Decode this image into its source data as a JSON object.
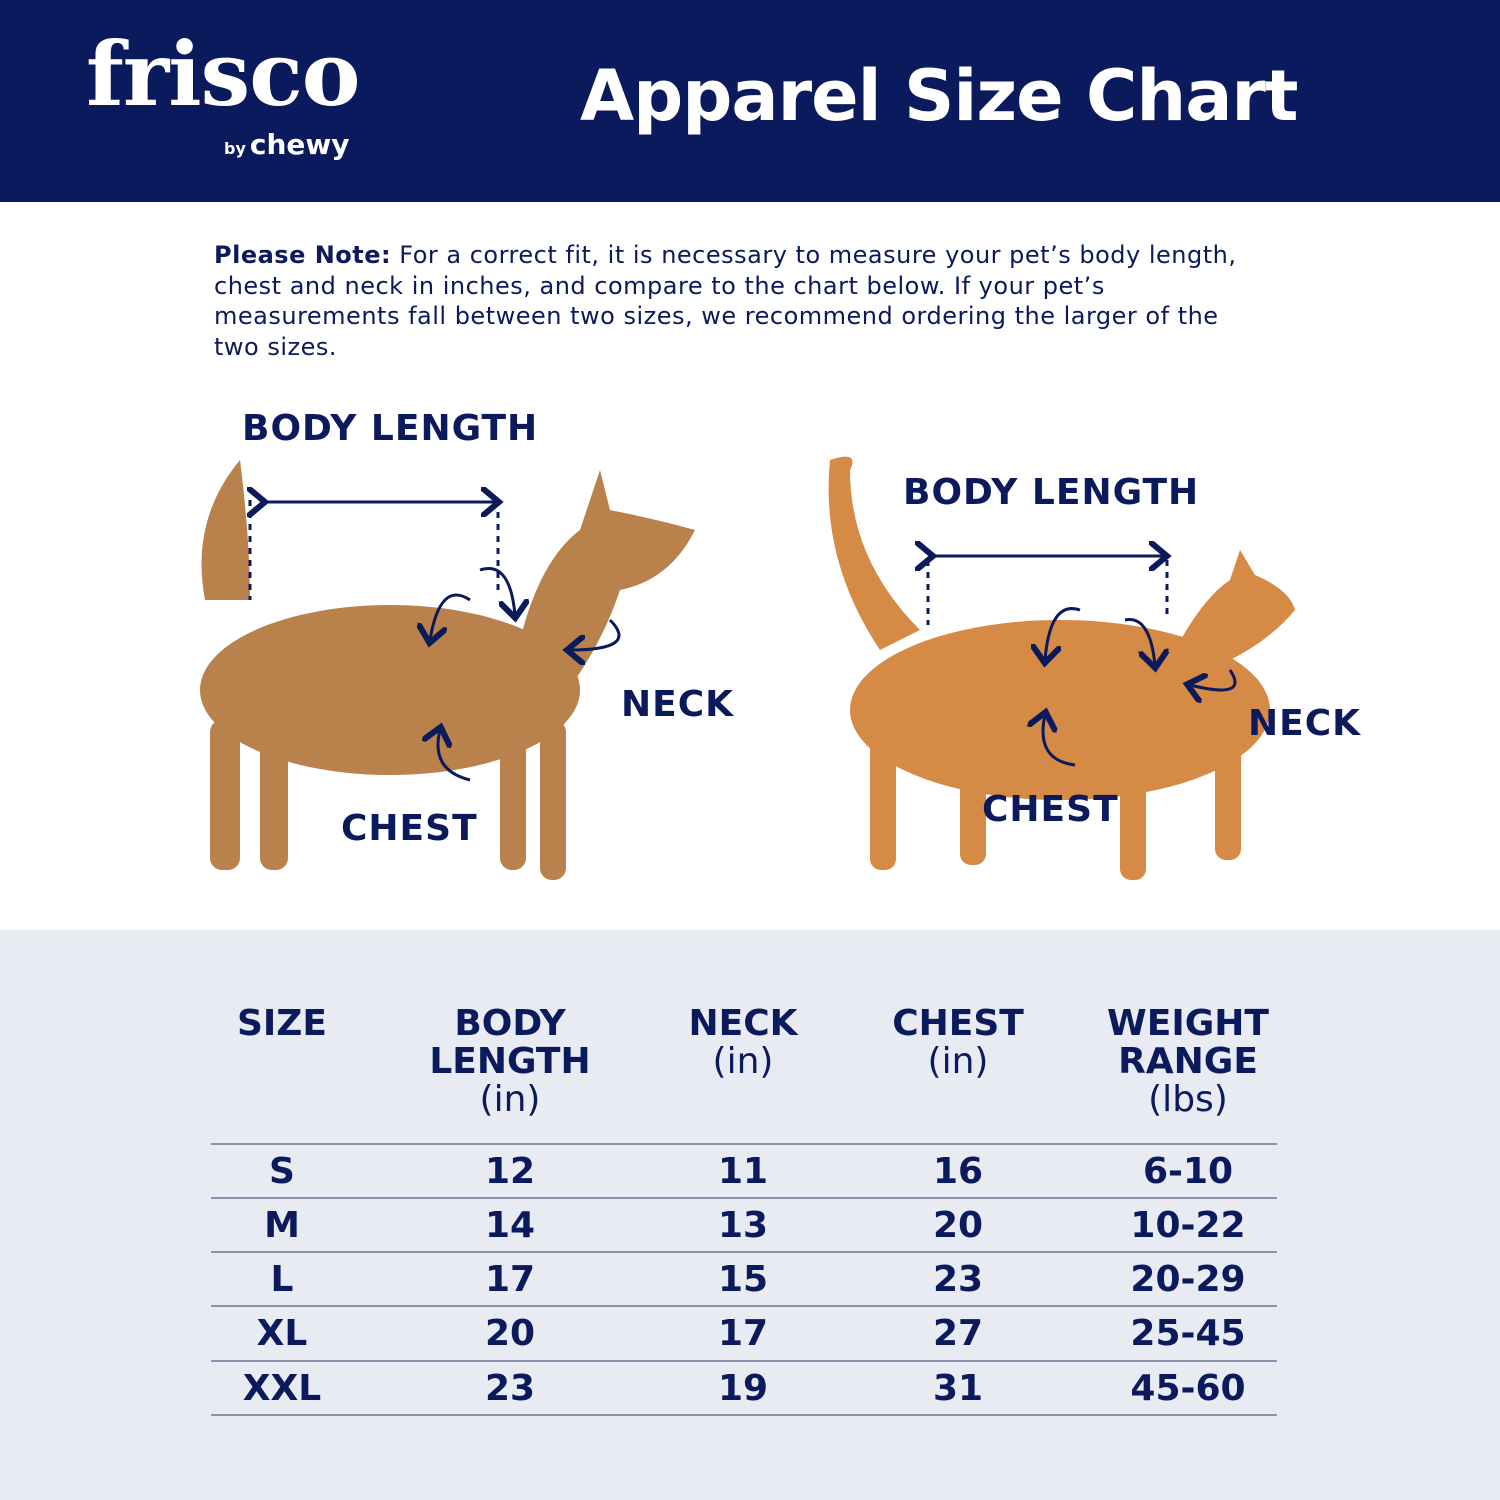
{
  "header": {
    "logo": {
      "brand": "frisco",
      "sub_by": "by",
      "sub_brand": "chewy"
    },
    "title": "Apparel Size Chart"
  },
  "note": {
    "lead": "Please Note:",
    "text": " For a correct fit, it is necessary to measure your pet’s body length, chest and neck in inches, and compare to the chart below. If your pet’s measurements fall between two sizes, we recommend ordering the larger of the two sizes."
  },
  "diagram": {
    "dog": {
      "body_length": "BODY LENGTH",
      "neck": "NECK",
      "chest": "CHEST"
    },
    "cat": {
      "body_length": "BODY LENGTH",
      "neck": "NECK",
      "chest": "CHEST"
    }
  },
  "colors": {
    "navy": "#0b1a5c",
    "table_bg": "#e8ebf2",
    "dog": "#b9814c",
    "cat": "#d58a45"
  },
  "table": {
    "headers": [
      {
        "title": "SIZE",
        "unit": ""
      },
      {
        "title": "BODY LENGTH",
        "unit": "(in)"
      },
      {
        "title": "NECK",
        "unit": "(in)"
      },
      {
        "title": "CHEST",
        "unit": "(in)"
      },
      {
        "title": "WEIGHT RANGE",
        "unit": "(lbs)"
      }
    ],
    "rows": [
      [
        "S",
        "12",
        "11",
        "16",
        "6-10"
      ],
      [
        "M",
        "14",
        "13",
        "20",
        "10-22"
      ],
      [
        "L",
        "17",
        "15",
        "23",
        "20-29"
      ],
      [
        "XL",
        "20",
        "17",
        "27",
        "25-45"
      ],
      [
        "XXL",
        "23",
        "19",
        "31",
        "45-60"
      ]
    ]
  }
}
